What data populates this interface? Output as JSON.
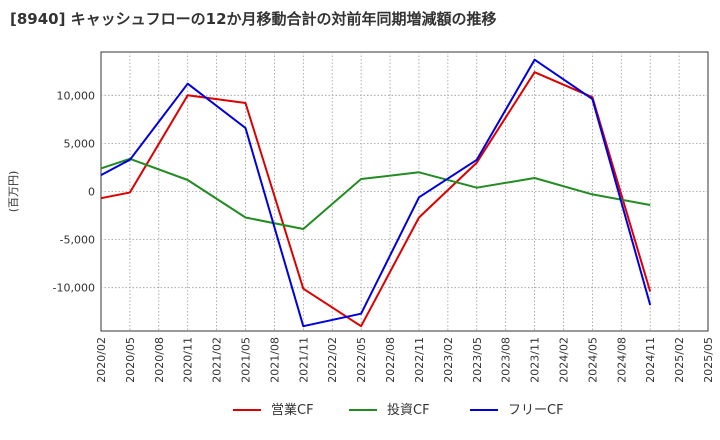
{
  "chart_data": {
    "type": "line",
    "title": "[8940]  キャッシュフローの12か月移動合計の対前年同期増減額の推移",
    "ylabel": "(百万円)",
    "xlabel": "",
    "ylim": [
      -14500,
      14500
    ],
    "yticks": [
      -10000,
      -5000,
      0,
      5000,
      10000
    ],
    "ytick_labels": [
      "-10,000",
      "-5,000",
      "0",
      "5,000",
      "10,000"
    ],
    "x_ticks": [
      "2020/02",
      "2020/05",
      "2020/08",
      "2020/11",
      "2021/02",
      "2021/05",
      "2021/08",
      "2021/11",
      "2022/02",
      "2022/05",
      "2022/08",
      "2022/11",
      "2023/02",
      "2023/05",
      "2023/08",
      "2023/11",
      "2024/02",
      "2024/05",
      "2024/08",
      "2024/11",
      "2025/02",
      "2025/05"
    ],
    "grid": true,
    "legend_position": "bottom",
    "series": [
      {
        "name": "営業CF",
        "color": "#dd0000",
        "x": [
          "2020/02",
          "2020/05",
          "2020/11",
          "2021/05",
          "2021/11",
          "2022/05",
          "2022/11",
          "2023/05",
          "2023/11",
          "2024/05",
          "2024/11"
        ],
        "values": [
          -700,
          -100,
          10000,
          9200,
          -10100,
          -14000,
          -2700,
          3000,
          12400,
          9800,
          -10400
        ]
      },
      {
        "name": "投資CF",
        "color": "#228b22",
        "x": [
          "2020/02",
          "2020/05",
          "2020/11",
          "2021/05",
          "2021/11",
          "2022/05",
          "2022/11",
          "2023/05",
          "2023/11",
          "2024/05",
          "2024/11"
        ],
        "values": [
          2400,
          3400,
          1200,
          -2700,
          -3900,
          1300,
          2000,
          400,
          1400,
          -300,
          -1400
        ]
      },
      {
        "name": "フリーCF",
        "color": "#0000dd",
        "x": [
          "2020/02",
          "2020/05",
          "2020/11",
          "2021/05",
          "2021/11",
          "2022/05",
          "2022/11",
          "2023/05",
          "2023/11",
          "2024/05",
          "2024/11"
        ],
        "values": [
          1700,
          3300,
          11200,
          6600,
          -14000,
          -12700,
          -600,
          3300,
          13700,
          9600,
          -11800
        ]
      }
    ]
  }
}
